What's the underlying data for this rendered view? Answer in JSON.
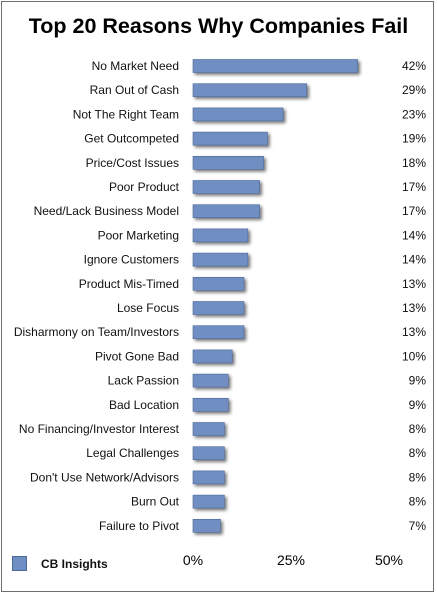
{
  "chart_data": {
    "type": "bar",
    "orientation": "horizontal",
    "title": "Top 20 Reasons Why Companies Fail",
    "categories": [
      "No Market Need",
      "Ran Out of Cash",
      "Not The Right Team",
      "Get Outcompeted",
      "Price/Cost Issues",
      "Poor Product",
      "Need/Lack Business Model",
      "Poor Marketing",
      "Ignore Customers",
      "Product Mis-Timed",
      "Lose Focus",
      "Disharmony on Team/Investors",
      "Pivot Gone Bad",
      "Lack Passion",
      "Bad Location",
      "No Financing/Investor Interest",
      "Legal Challenges",
      "Don't Use Network/Advisors",
      "Burn Out",
      "Failure to Pivot"
    ],
    "values": [
      42,
      29,
      23,
      19,
      18,
      17,
      17,
      14,
      14,
      13,
      13,
      13,
      10,
      9,
      9,
      8,
      8,
      8,
      8,
      7
    ],
    "value_labels": [
      "42%",
      "29%",
      "23%",
      "19%",
      "18%",
      "17%",
      "17%",
      "14%",
      "14%",
      "13%",
      "13%",
      "13%",
      "10%",
      "9%",
      "9%",
      "8%",
      "8%",
      "8%",
      "8%",
      "7%"
    ],
    "xlim": [
      0,
      50
    ],
    "xticks": [
      0,
      25,
      50
    ],
    "xtick_labels": [
      "0%",
      "25%",
      "50%"
    ],
    "grid": false,
    "legend_position": "bottom-left",
    "legend": [
      "CB Insights"
    ],
    "colors": {
      "bar": "#6f8ec2",
      "bar_edge": "#4d6a9c"
    }
  }
}
